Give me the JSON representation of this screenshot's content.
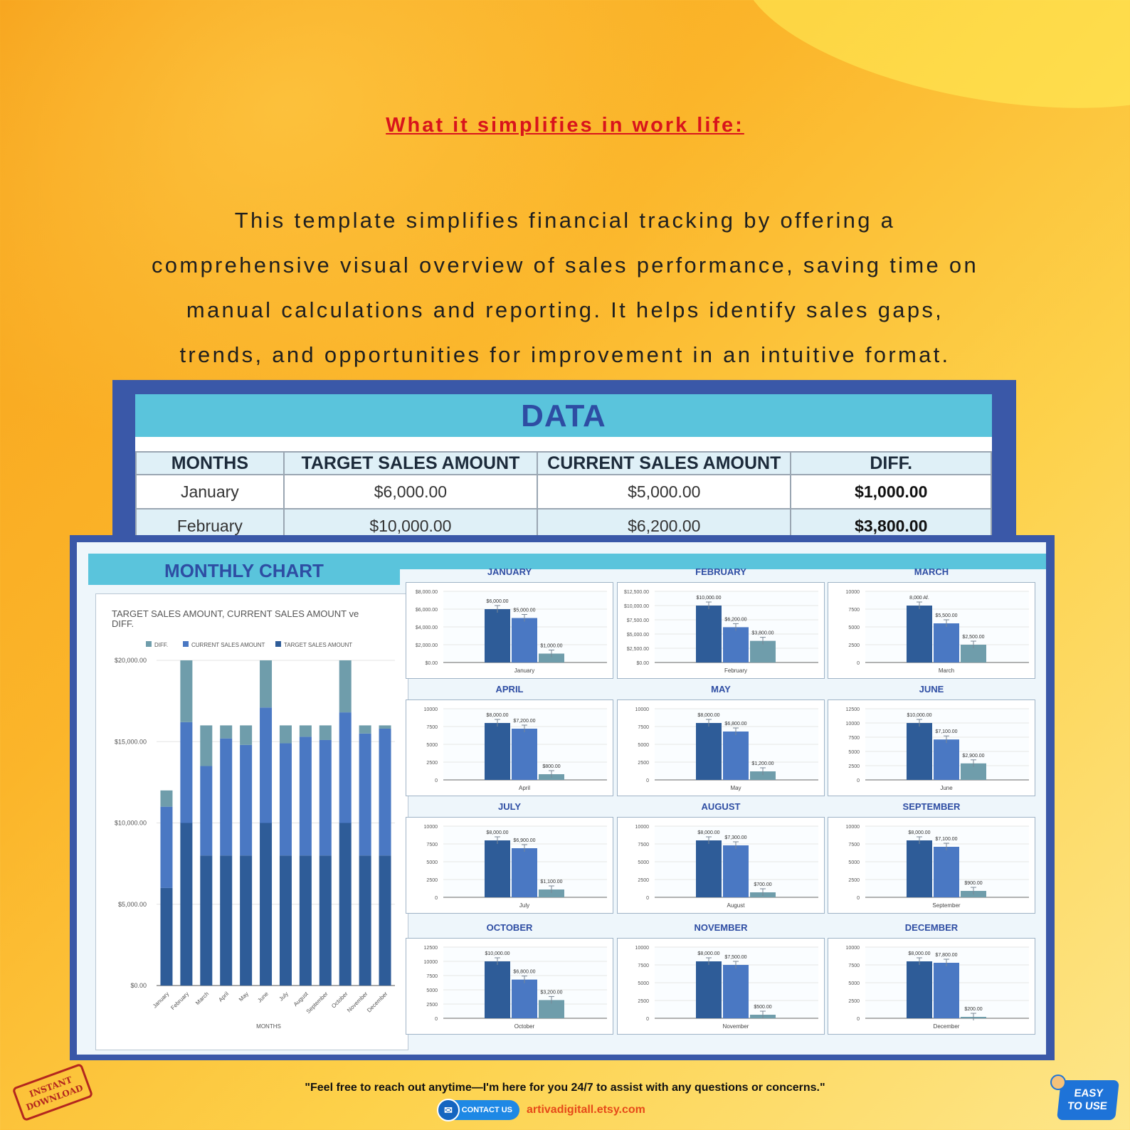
{
  "headline": "What it simplifies in work life:",
  "intro_lines": [
    "This template simplifies financial tracking by offering a",
    "comprehensive visual overview of sales performance, saving time on",
    "manual calculations and reporting. It helps identify sales gaps,",
    "trends, and opportunities for improvement in an intuitive format."
  ],
  "data_table": {
    "title": "DATA",
    "headers": [
      "MONTHS",
      "TARGET SALES AMOUNT",
      "CURRENT SALES AMOUNT",
      "DIFF."
    ],
    "rows": [
      [
        "January",
        "$6,000.00",
        "$5,000.00",
        "$1,000.00"
      ],
      [
        "February",
        "$10,000.00",
        "$6,200.00",
        "$3,800.00"
      ]
    ]
  },
  "monthly_chart_title": "MONTHLY CHART",
  "colors": {
    "target": "#2e5c98",
    "current": "#4a78c3",
    "diff": "#6f9dab",
    "accent": "#5ac4dc",
    "panel": "#3a58a8"
  },
  "chart_data": [
    {
      "type": "bar",
      "stacked": true,
      "title": "TARGET SALES AMOUNT, CURRENT SALES AMOUNT ve DIFF.",
      "xlabel": "MONTHS",
      "ylabel": "",
      "legend": [
        "DIFF.",
        "CURRENT SALES AMOUNT",
        "TARGET SALES AMOUNT"
      ],
      "legend_position": "top",
      "yticks": [
        "$0.00",
        "$5,000.00",
        "$10,000.00",
        "$15,000.00",
        "$20,000.00"
      ],
      "ylim": [
        0,
        20000
      ],
      "categories": [
        "January",
        "February",
        "March",
        "April",
        "May",
        "June",
        "July",
        "August",
        "September",
        "October",
        "November",
        "December"
      ],
      "series": [
        {
          "name": "TARGET SALES AMOUNT",
          "values": [
            6000,
            10000,
            8000,
            8000,
            8000,
            10000,
            8000,
            8000,
            8000,
            10000,
            8000,
            8000
          ]
        },
        {
          "name": "CURRENT SALES AMOUNT",
          "values": [
            5000,
            6200,
            5500,
            7200,
            6800,
            7100,
            6900,
            7300,
            7100,
            6800,
            7500,
            7800
          ]
        },
        {
          "name": "DIFF.",
          "values": [
            1000,
            3800,
            2500,
            800,
            1200,
            2900,
            1100,
            700,
            900,
            3200,
            500,
            200
          ]
        }
      ]
    },
    {
      "type": "bar",
      "title": "JANUARY",
      "category": "January",
      "yticks": [
        "$0.00",
        "$2,000.00",
        "$4,000.00",
        "$6,000.00",
        "$8,000.00"
      ],
      "ylim": [
        0,
        8000
      ],
      "values": [
        6000,
        5000,
        1000
      ],
      "labels": [
        "$6,000.00",
        "$5,000.00",
        "$1,000.00"
      ]
    },
    {
      "type": "bar",
      "title": "FEBRUARY",
      "category": "February",
      "yticks": [
        "$0.00",
        "$2,500.00",
        "$5,000.00",
        "$7,500.00",
        "$10,000.00",
        "$12,500.00"
      ],
      "ylim": [
        0,
        12500
      ],
      "values": [
        10000,
        6200,
        3800
      ],
      "labels": [
        "$10,000.00",
        "$6,200.00",
        "$3,800.00"
      ]
    },
    {
      "type": "bar",
      "title": "MARCH",
      "category": "March",
      "yticks": [
        "0",
        "2500",
        "5000",
        "7500",
        "10000"
      ],
      "ylim": [
        0,
        10000
      ],
      "values": [
        8000,
        5500,
        2500
      ],
      "labels": [
        "8,000 Af.",
        "$5,500.00",
        "$2,500.00"
      ]
    },
    {
      "type": "bar",
      "title": "APRIL",
      "category": "April",
      "yticks": [
        "0",
        "2500",
        "5000",
        "7500",
        "10000"
      ],
      "ylim": [
        0,
        10000
      ],
      "values": [
        8000,
        7200,
        800
      ],
      "labels": [
        "$8,000.00",
        "$7,200.00",
        "$800.00"
      ]
    },
    {
      "type": "bar",
      "title": "MAY",
      "category": "May",
      "yticks": [
        "0",
        "2500",
        "5000",
        "7500",
        "10000"
      ],
      "ylim": [
        0,
        10000
      ],
      "values": [
        8000,
        6800,
        1200
      ],
      "labels": [
        "$8,000.00",
        "$6,800.00",
        "$1,200.00"
      ]
    },
    {
      "type": "bar",
      "title": "JUNE",
      "category": "June",
      "yticks": [
        "0",
        "2500",
        "5000",
        "7500",
        "10000",
        "12500"
      ],
      "ylim": [
        0,
        12500
      ],
      "values": [
        10000,
        7100,
        2900
      ],
      "labels": [
        "$10,000.00",
        "$7,100.00",
        "$2,900.00"
      ]
    },
    {
      "type": "bar",
      "title": "JULY",
      "category": "July",
      "yticks": [
        "0",
        "2500",
        "5000",
        "7500",
        "10000"
      ],
      "ylim": [
        0,
        10000
      ],
      "values": [
        8000,
        6900,
        1100
      ],
      "labels": [
        "$8,000.00",
        "$6,900.00",
        "$1,100.00"
      ]
    },
    {
      "type": "bar",
      "title": "AUGUST",
      "category": "August",
      "yticks": [
        "0",
        "2500",
        "5000",
        "7500",
        "10000"
      ],
      "ylim": [
        0,
        10000
      ],
      "values": [
        8000,
        7300,
        700
      ],
      "labels": [
        "$8,000.00",
        "$7,300.00",
        "$700.00"
      ]
    },
    {
      "type": "bar",
      "title": "SEPTEMBER",
      "category": "September",
      "yticks": [
        "0",
        "2500",
        "5000",
        "7500",
        "10000"
      ],
      "ylim": [
        0,
        10000
      ],
      "values": [
        8000,
        7100,
        900
      ],
      "labels": [
        "$8,000.00",
        "$7,100.00",
        "$900.00"
      ]
    },
    {
      "type": "bar",
      "title": "OCTOBER",
      "category": "October",
      "yticks": [
        "0",
        "2500",
        "5000",
        "7500",
        "10000",
        "12500"
      ],
      "ylim": [
        0,
        12500
      ],
      "values": [
        10000,
        6800,
        3200
      ],
      "labels": [
        "$10,000.00",
        "$6,800.00",
        "$3,200.00"
      ]
    },
    {
      "type": "bar",
      "title": "NOVEMBER",
      "category": "November",
      "yticks": [
        "0",
        "2500",
        "5000",
        "7500",
        "10000"
      ],
      "ylim": [
        0,
        10000
      ],
      "values": [
        8000,
        7500,
        500
      ],
      "labels": [
        "$8,000.00",
        "$7,500.00",
        "$500.00"
      ]
    },
    {
      "type": "bar",
      "title": "DECEMBER",
      "category": "December",
      "yticks": [
        "0",
        "2500",
        "5000",
        "7500",
        "10000"
      ],
      "ylim": [
        0,
        10000
      ],
      "values": [
        8000,
        7800,
        200
      ],
      "labels": [
        "$8,000.00",
        "$7,800.00",
        "$200.00"
      ]
    }
  ],
  "footer": {
    "quote": "\"Feel free to reach out anytime—I'm here for you 24/7 to assist with any questions or concerns.\"",
    "contact_label": "CONTACT US",
    "site": "artivadigitall.etsy.com",
    "stamp_line1": "INSTANT",
    "stamp_line2": "DOWNLOAD",
    "easy_line1": "EASY",
    "easy_line2": "TO USE",
    "contact_icon": "mail-icon"
  }
}
